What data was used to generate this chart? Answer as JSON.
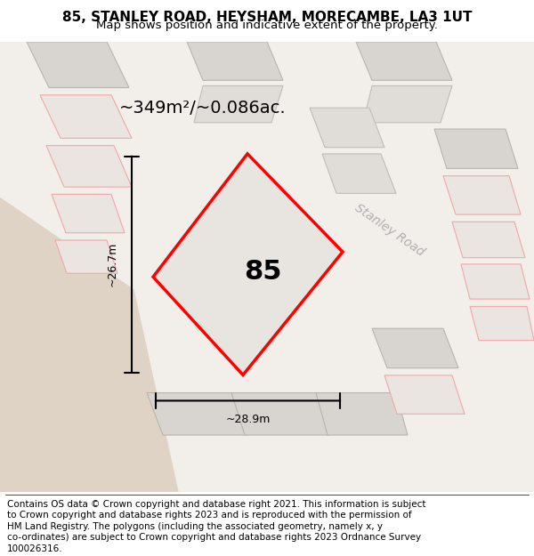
{
  "title_line1": "85, STANLEY ROAD, HEYSHAM, MORECAMBE, LA3 1UT",
  "title_line2": "Map shows position and indicative extent of the property.",
  "area_label": "~349m²/~0.086ac.",
  "width_label": "~28.9m",
  "height_label": "~26.7m",
  "property_number": "85",
  "road_label": "Stanley Road",
  "map_bg": "#f2eeea",
  "title_fontsize": 11,
  "subtitle_fontsize": 9.5,
  "footer_fontsize": 7.5,
  "footer_lines": [
    "Contains OS data © Crown copyright and database right 2021. This information is subject",
    "to Crown copyright and database rights 2023 and is reproduced with the permission of",
    "HM Land Registry. The polygons (including the associated geometry, namely x, y",
    "co-ordinates) are subject to Crown copyright and database rights 2023 Ordnance Survey",
    "100026316."
  ]
}
